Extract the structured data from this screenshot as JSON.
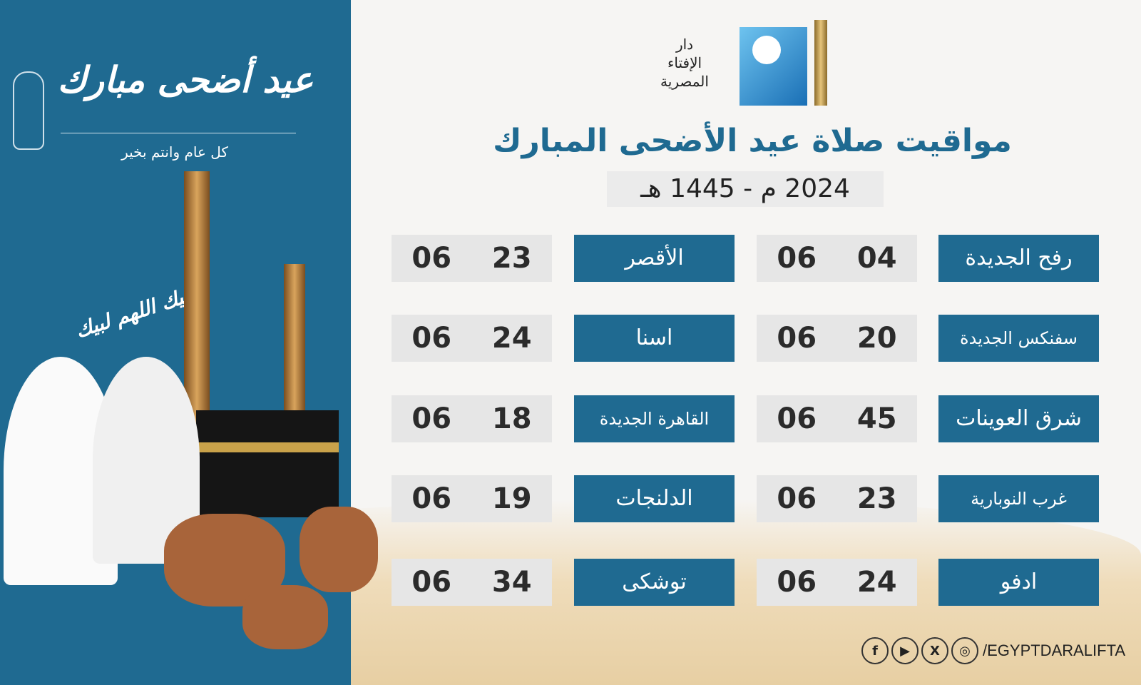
{
  "greeting": {
    "title": "عيد أضحى مبارك",
    "subtitle": "كل عام وانتم بخير",
    "labbaik": "لبيك اللهم لبيك"
  },
  "logo": {
    "text": "دار الإفتاء المصرية"
  },
  "header": {
    "title": "مواقيت صلاة عيد الأضحى المبارك",
    "year": "2024 م - 1445 هـ"
  },
  "colors": {
    "primary": "#1f6a91",
    "time_bg": "#e6e6e6"
  },
  "right_column": [
    {
      "city": "رفح الجديدة",
      "hour": "06",
      "minute": "04"
    },
    {
      "city": "سفنكس الجديدة",
      "hour": "06",
      "minute": "20"
    },
    {
      "city": "شرق العوينات",
      "hour": "06",
      "minute": "45"
    },
    {
      "city": "غرب النوبارية",
      "hour": "06",
      "minute": "23"
    },
    {
      "city": "ادفو",
      "hour": "06",
      "minute": "24"
    }
  ],
  "left_column": [
    {
      "city": "الأقصر",
      "hour": "06",
      "minute": "23"
    },
    {
      "city": "اسنا",
      "hour": "06",
      "minute": "24"
    },
    {
      "city": "القاهرة الجديدة",
      "hour": "06",
      "minute": "18"
    },
    {
      "city": "الدلنجات",
      "hour": "06",
      "minute": "19"
    },
    {
      "city": "توشكى",
      "hour": "06",
      "minute": "34"
    }
  ],
  "social": {
    "icons": [
      "facebook-icon",
      "youtube-icon",
      "x-icon",
      "instagram-icon"
    ],
    "handle": "/EGYPTDARALIFTA"
  }
}
